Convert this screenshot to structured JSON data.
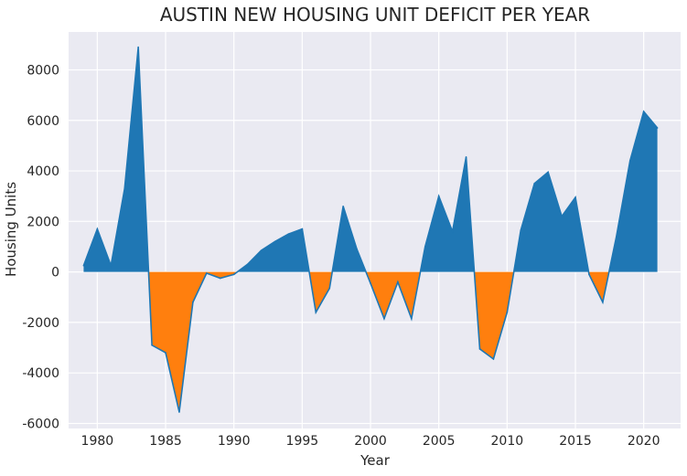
{
  "chart_data": {
    "type": "area",
    "title": "AUSTIN NEW HOUSING UNIT DEFICIT PER YEAR",
    "xlabel": "Year",
    "ylabel": "Housing Units",
    "x": [
      1979,
      1980,
      1981,
      1982,
      1983,
      1984,
      1985,
      1986,
      1987,
      1988,
      1989,
      1990,
      1991,
      1992,
      1993,
      1994,
      1995,
      1996,
      1997,
      1998,
      1999,
      2000,
      2001,
      2002,
      2003,
      2004,
      2005,
      2006,
      2007,
      2008,
      2009,
      2010,
      2011,
      2012,
      2013,
      2014,
      2015,
      2016,
      2017,
      2018,
      2019,
      2020,
      2021
    ],
    "values": [
      250,
      1700,
      250,
      3300,
      8900,
      -2900,
      -3200,
      -5550,
      -1200,
      -50,
      -250,
      -100,
      300,
      850,
      1200,
      1500,
      1700,
      -1600,
      -650,
      2600,
      900,
      -450,
      -1850,
      -400,
      -1850,
      1000,
      3000,
      1600,
      4550,
      -3050,
      -3450,
      -1600,
      1650,
      3500,
      3950,
      2200,
      2950,
      -100,
      -1200,
      1400,
      4400,
      6350,
      5700
    ],
    "xlim": [
      1977.9,
      2022.7
    ],
    "ylim": [
      -6200,
      9500
    ],
    "x_ticks": [
      1980,
      1985,
      1990,
      1995,
      2000,
      2005,
      2010,
      2015,
      2020
    ],
    "y_ticks": [
      -6000,
      -4000,
      -2000,
      0,
      2000,
      4000,
      6000,
      8000
    ],
    "grid": true,
    "colors": {
      "positive_fill": "#1f77b4",
      "negative_fill": "#ff7f0e",
      "line": "#1f77b4",
      "plot_background": "#eaeaf2",
      "grid": "#ffffff"
    }
  }
}
